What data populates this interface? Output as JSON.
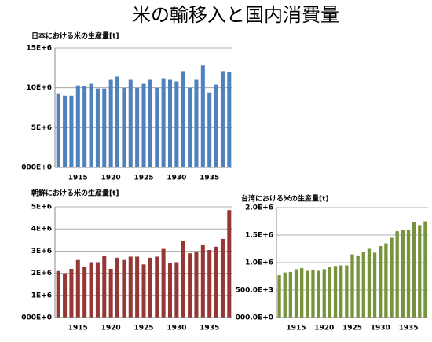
{
  "title": "米の輸移入と国内消費量",
  "chart_data": [
    {
      "type": "bar",
      "title": "日本における米の生産量[t]",
      "color": "#4f81bd",
      "grid": true,
      "categories": [
        null,
        null,
        null,
        "1915",
        null,
        null,
        null,
        null,
        "1920",
        null,
        null,
        null,
        null,
        "1925",
        null,
        null,
        null,
        null,
        "1930",
        null,
        null,
        null,
        null,
        "1935",
        null,
        null,
        null
      ],
      "values": [
        9300000,
        9000000,
        9000000,
        10300000,
        10200000,
        10500000,
        9900000,
        9900000,
        11000000,
        11400000,
        10000000,
        11000000,
        10000000,
        10500000,
        11000000,
        10000000,
        11200000,
        11000000,
        10800000,
        12100000,
        10000000,
        11000000,
        12800000,
        9400000,
        10400000,
        12100000,
        12000000
      ],
      "ylim": [
        0,
        15000000
      ],
      "yticks": [
        {
          "value": 0,
          "label": "000E+0"
        },
        {
          "value": 5000000,
          "label": "5E+6"
        },
        {
          "value": 10000000,
          "label": "10E+6"
        },
        {
          "value": 15000000,
          "label": "15E+6"
        }
      ]
    },
    {
      "type": "bar",
      "title": "朝鮮における米の生産量[t]",
      "color": "#953735",
      "grid": true,
      "categories": [
        null,
        null,
        null,
        "1915",
        null,
        null,
        null,
        null,
        "1920",
        null,
        null,
        null,
        null,
        "1925",
        null,
        null,
        null,
        null,
        "1930",
        null,
        null,
        null,
        null,
        "1935",
        null,
        null,
        null
      ],
      "values": [
        2100000,
        2000000,
        2200000,
        2600000,
        2300000,
        2500000,
        2500000,
        2800000,
        2200000,
        2700000,
        2600000,
        2750000,
        2750000,
        2400000,
        2700000,
        2750000,
        3100000,
        2450000,
        2500000,
        3450000,
        2900000,
        2950000,
        3300000,
        3050000,
        3200000,
        3550000,
        4850000
      ],
      "ylim": [
        0,
        5000000
      ],
      "yticks": [
        {
          "value": 0,
          "label": "000E+0"
        },
        {
          "value": 1000000,
          "label": "1E+6"
        },
        {
          "value": 2000000,
          "label": "2E+6"
        },
        {
          "value": 3000000,
          "label": "3E+6"
        },
        {
          "value": 4000000,
          "label": "4E+6"
        },
        {
          "value": 5000000,
          "label": "5E+6"
        }
      ]
    },
    {
      "type": "bar",
      "title": "台湾における米の生産量[t]",
      "color": "#77933c",
      "grid": true,
      "categories": [
        null,
        null,
        null,
        "1915",
        null,
        null,
        null,
        null,
        "1920",
        null,
        null,
        null,
        null,
        "1925",
        null,
        null,
        null,
        null,
        "1930",
        null,
        null,
        null,
        null,
        "1935",
        null,
        null,
        null
      ],
      "values": [
        770000,
        820000,
        830000,
        880000,
        900000,
        850000,
        870000,
        850000,
        880000,
        920000,
        940000,
        950000,
        950000,
        1150000,
        1130000,
        1200000,
        1250000,
        1180000,
        1300000,
        1350000,
        1450000,
        1570000,
        1600000,
        1600000,
        1730000,
        1680000,
        1750000
      ],
      "ylim": [
        0,
        2000000
      ],
      "yticks": [
        {
          "value": 0,
          "label": "000.0E+0"
        },
        {
          "value": 500000,
          "label": "500.0E+3"
        },
        {
          "value": 1000000,
          "label": "1.0E+6"
        },
        {
          "value": 1500000,
          "label": "1.5E+6"
        },
        {
          "value": 2000000,
          "label": "2.0E+6"
        }
      ]
    }
  ]
}
